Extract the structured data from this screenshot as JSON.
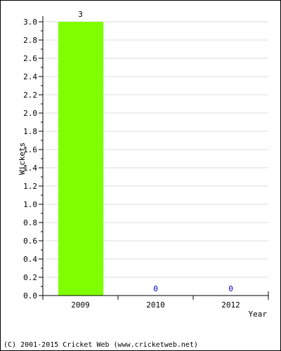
{
  "chart_data": {
    "type": "bar",
    "categories": [
      "2009",
      "2010",
      "2012"
    ],
    "values": [
      3,
      0,
      0
    ],
    "data_labels": [
      "3",
      "0",
      "0"
    ],
    "xlabel": "Year",
    "ylabel": "Wickets",
    "ylim": [
      0,
      3.0
    ],
    "y_ticks": [
      "0.0",
      "0.2",
      "0.4",
      "0.6",
      "0.8",
      "1.0",
      "1.2",
      "1.4",
      "1.6",
      "1.8",
      "2.0",
      "2.2",
      "2.4",
      "2.6",
      "2.8",
      "3.0"
    ],
    "grid": true,
    "legend": "none"
  },
  "colors": {
    "bar": "#80ff00",
    "grid": "#dddddd",
    "axis": "#000000",
    "zero_label": "#0000cc"
  },
  "footer": {
    "copyright": "(C) 2001-2015 Cricket Web (www.cricketweb.net)"
  }
}
